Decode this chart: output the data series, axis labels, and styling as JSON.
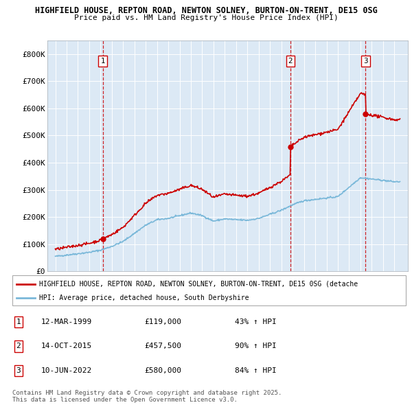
{
  "title1": "HIGHFIELD HOUSE, REPTON ROAD, NEWTON SOLNEY, BURTON-ON-TRENT, DE15 0SG",
  "title2": "Price paid vs. HM Land Registry's House Price Index (HPI)",
  "legend_line1": "HIGHFIELD HOUSE, REPTON ROAD, NEWTON SOLNEY, BURTON-ON-TRENT, DE15 0SG (detache",
  "legend_line2": "HPI: Average price, detached house, South Derbyshire",
  "footer": "Contains HM Land Registry data © Crown copyright and database right 2025.\nThis data is licensed under the Open Government Licence v3.0.",
  "transactions": [
    {
      "num": 1,
      "date": "12-MAR-1999",
      "price": 119000,
      "pct": "43% ↑ HPI",
      "year": 1999.2
    },
    {
      "num": 2,
      "date": "14-OCT-2015",
      "price": 457500,
      "pct": "90% ↑ HPI",
      "year": 2015.8
    },
    {
      "num": 3,
      "date": "10-JUN-2022",
      "price": 580000,
      "pct": "84% ↑ HPI",
      "year": 2022.45
    }
  ],
  "hpi_color": "#7ab8d9",
  "price_color": "#cc0000",
  "dashed_color": "#cc0000",
  "bg_color": "#dce9f5",
  "grid_color": "#ffffff",
  "ylim_max": 850000,
  "xlim_start": 1994.3,
  "xlim_end": 2026.2,
  "sale_years": [
    1999.2,
    2015.8,
    2022.45
  ],
  "sale_prices": [
    119000,
    457500,
    580000
  ]
}
